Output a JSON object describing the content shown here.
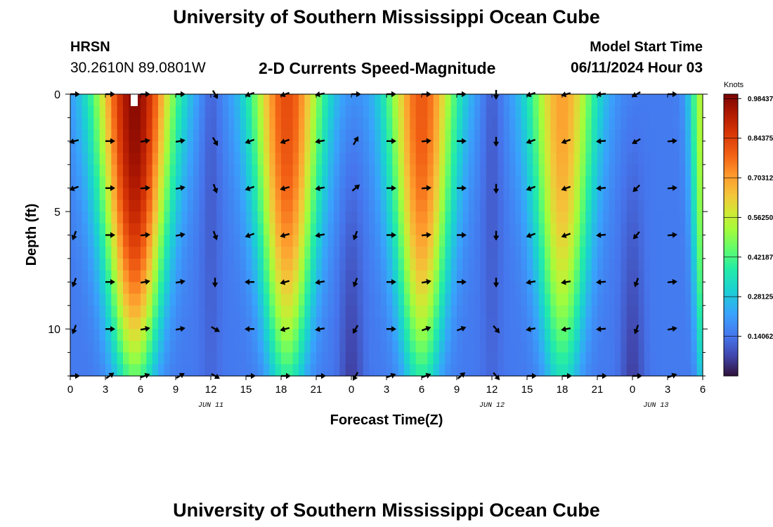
{
  "header": {
    "title": "University of Southern Mississippi Ocean Cube",
    "station_name": "HRSN",
    "coordinates": "30.2610N  89.0801W",
    "chart_title": "2-D Currents Speed-Magnitude",
    "model_start_label": "Model Start Time",
    "model_start_value": "06/11/2024 Hour 03"
  },
  "footer": {
    "title": "University of Southern Mississippi Ocean Cube"
  },
  "chart_data": {
    "type": "heatmap",
    "title": "2-D Currents Speed-Magnitude",
    "xlabel": "Forecast Time(Z)",
    "ylabel": "Depth (ft)",
    "x_range_hours": [
      0,
      54
    ],
    "y_range_ft": [
      0,
      12
    ],
    "y_inverted": true,
    "x_ticks": [
      "0",
      "3",
      "6",
      "9",
      "12",
      "15",
      "18",
      "21",
      "0",
      "3",
      "6",
      "9",
      "12",
      "15",
      "18",
      "21",
      "0",
      "3",
      "6"
    ],
    "y_ticks": [
      "0",
      "5",
      "10"
    ],
    "date_labels": [
      {
        "text": "JUN 11",
        "hour": 12
      },
      {
        "text": "JUN 12",
        "hour": 36
      },
      {
        "text": "JUN 13",
        "hour": 50
      }
    ],
    "colorbar": {
      "unit": "Knots",
      "min": 0.0,
      "max": 1.0,
      "ticks": [
        "0.98437",
        "0.84375",
        "0.70312",
        "0.56250",
        "0.42187",
        "0.28125",
        "0.14062"
      ],
      "tick_values": [
        0.98437,
        0.84375,
        0.70312,
        0.5625,
        0.42187,
        0.28125,
        0.14062
      ]
    },
    "speed_peaks_knots": [
      {
        "hour": 5.5,
        "peak": 0.98,
        "spread_hours": 3.6
      },
      {
        "hour": 18.5,
        "peak": 0.82,
        "spread_hours": 3.3
      },
      {
        "hour": 30.0,
        "peak": 0.8,
        "spread_hours": 3.2
      },
      {
        "hour": 42.0,
        "peak": 0.7,
        "spread_hours": 3.1
      },
      {
        "hour": 54.0,
        "peak": 0.55,
        "spread_hours": 1.2
      }
    ],
    "vector_depths_ft": [
      0,
      2,
      4,
      6,
      8,
      10,
      12
    ],
    "vector_columns": [
      {
        "hour": 0,
        "angles": [
          0,
          195,
          200,
          250,
          250,
          250,
          0
        ]
      },
      {
        "hour": 3,
        "angles": [
          0,
          0,
          0,
          0,
          0,
          0,
          35
        ]
      },
      {
        "hour": 6,
        "angles": [
          0,
          10,
          5,
          5,
          10,
          10,
          20
        ]
      },
      {
        "hour": 9,
        "angles": [
          0,
          10,
          10,
          10,
          10,
          10,
          30
        ]
      },
      {
        "hour": 12,
        "angles": [
          300,
          300,
          290,
          290,
          270,
          330,
          330
        ]
      },
      {
        "hour": 15,
        "angles": [
          200,
          200,
          200,
          200,
          180,
          180,
          0
        ]
      },
      {
        "hour": 18,
        "angles": [
          200,
          200,
          195,
          195,
          195,
          195,
          0
        ]
      },
      {
        "hour": 21,
        "angles": [
          190,
          190,
          190,
          190,
          190,
          190,
          0
        ]
      },
      {
        "hour": 24,
        "angles": [
          0,
          60,
          40,
          250,
          250,
          240,
          240
        ]
      },
      {
        "hour": 27,
        "angles": [
          0,
          0,
          0,
          0,
          0,
          0,
          20
        ]
      },
      {
        "hour": 30,
        "angles": [
          0,
          5,
          5,
          5,
          10,
          20,
          20
        ]
      },
      {
        "hour": 33,
        "angles": [
          0,
          0,
          0,
          0,
          0,
          20,
          40
        ]
      },
      {
        "hour": 36,
        "angles": [
          270,
          270,
          270,
          270,
          270,
          310,
          310
        ]
      },
      {
        "hour": 39,
        "angles": [
          200,
          200,
          200,
          200,
          190,
          190,
          0
        ]
      },
      {
        "hour": 42,
        "angles": [
          195,
          200,
          200,
          200,
          190,
          190,
          0
        ]
      },
      {
        "hour": 45,
        "angles": [
          185,
          185,
          185,
          185,
          185,
          185,
          0
        ]
      },
      {
        "hour": 48,
        "angles": [
          210,
          210,
          225,
          230,
          250,
          250,
          0
        ]
      },
      {
        "hour": 51,
        "angles": [
          0,
          5,
          5,
          5,
          5,
          10,
          20
        ]
      }
    ]
  }
}
